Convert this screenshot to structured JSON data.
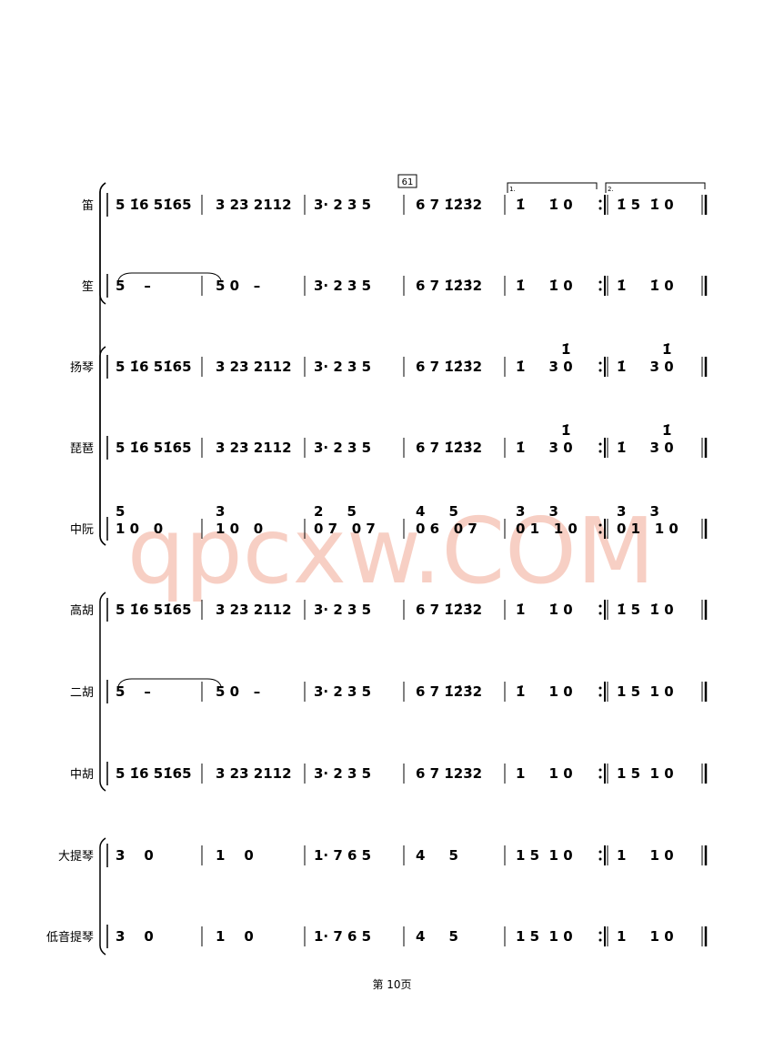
{
  "rehearsal_mark": "61",
  "voltas": [
    "1.",
    "2."
  ],
  "watermark": "qpcxw.COM",
  "footer": "第 10页",
  "parts": [
    {
      "name": "笛",
      "measures": [
        "5 1̇6 51̇65",
        "3 23 2112",
        "3· 2 3 5",
        "6 7 1̇2̇3̇2",
        "1̇     1̇ 0",
        "1̇ 5  1̇ 0"
      ]
    },
    {
      "name": "笙",
      "measures": [
        "5    –",
        "5 0   –",
        "3· 2 3 5",
        "6 7 1̇2̇3̇2",
        "1̇     1̇ 0",
        "1̇     1̇ 0"
      ]
    },
    {
      "name": "扬琴",
      "measures": [
        "5 1̇6 51̇65",
        "3 23 2112",
        "3· 2 3 5",
        "6 7 1̇2̇3̇2",
        "1̇     3 0",
        "1̇     3 0"
      ],
      "upper": [
        null,
        null,
        null,
        null,
        "1̇",
        "1̇"
      ]
    },
    {
      "name": "琵琶",
      "measures": [
        "5 1̇6 51̇65",
        "3 23 2112",
        "3· 2 3 5",
        "6 7 1̇2̇3̇2",
        "1̇     3 0",
        "1̇     3 0"
      ],
      "upper": [
        null,
        null,
        null,
        null,
        "1̇",
        "1̇"
      ]
    },
    {
      "name": "中阮",
      "measures": [
        "1 0   0",
        "1 0   0",
        "0 7   0 7",
        "0 6   0 7",
        "0 1   1 0",
        "0 1   1 0"
      ],
      "upper": [
        "5",
        "3",
        "2     5",
        "4     5",
        "3     3",
        "3     3"
      ]
    },
    {
      "name": "高胡",
      "measures": [
        "5 1̇6 51̇65",
        "3 23 2112",
        "3· 2 3 5",
        "6 7 1̇2̇3̇2",
        "1̇     1̇ 0",
        "1̇ 5  1̇ 0"
      ]
    },
    {
      "name": "二胡",
      "measures": [
        "5    –",
        "5 0   –",
        "3· 2 3 5",
        "6 7 1̇2̇3̇2",
        "1̇     1 0",
        "1 5  1 0"
      ]
    },
    {
      "name": "中胡",
      "measures": [
        "5 1̇6 51̇65",
        "3 23 2112",
        "3· 2 3 5",
        "6 7 1232",
        "1     1 0",
        "1 5  1 0"
      ]
    },
    {
      "name": "大提琴",
      "measures": [
        "3    0",
        "1    0",
        "1· 7 6 5",
        "4     5",
        "1 5  1 0",
        "1     1 0"
      ]
    },
    {
      "name": "低音提琴",
      "measures": [
        "3    0",
        "1    0",
        "1· 7 6 5",
        "4     5",
        "1 5  1 0",
        "1     1 0"
      ]
    }
  ]
}
